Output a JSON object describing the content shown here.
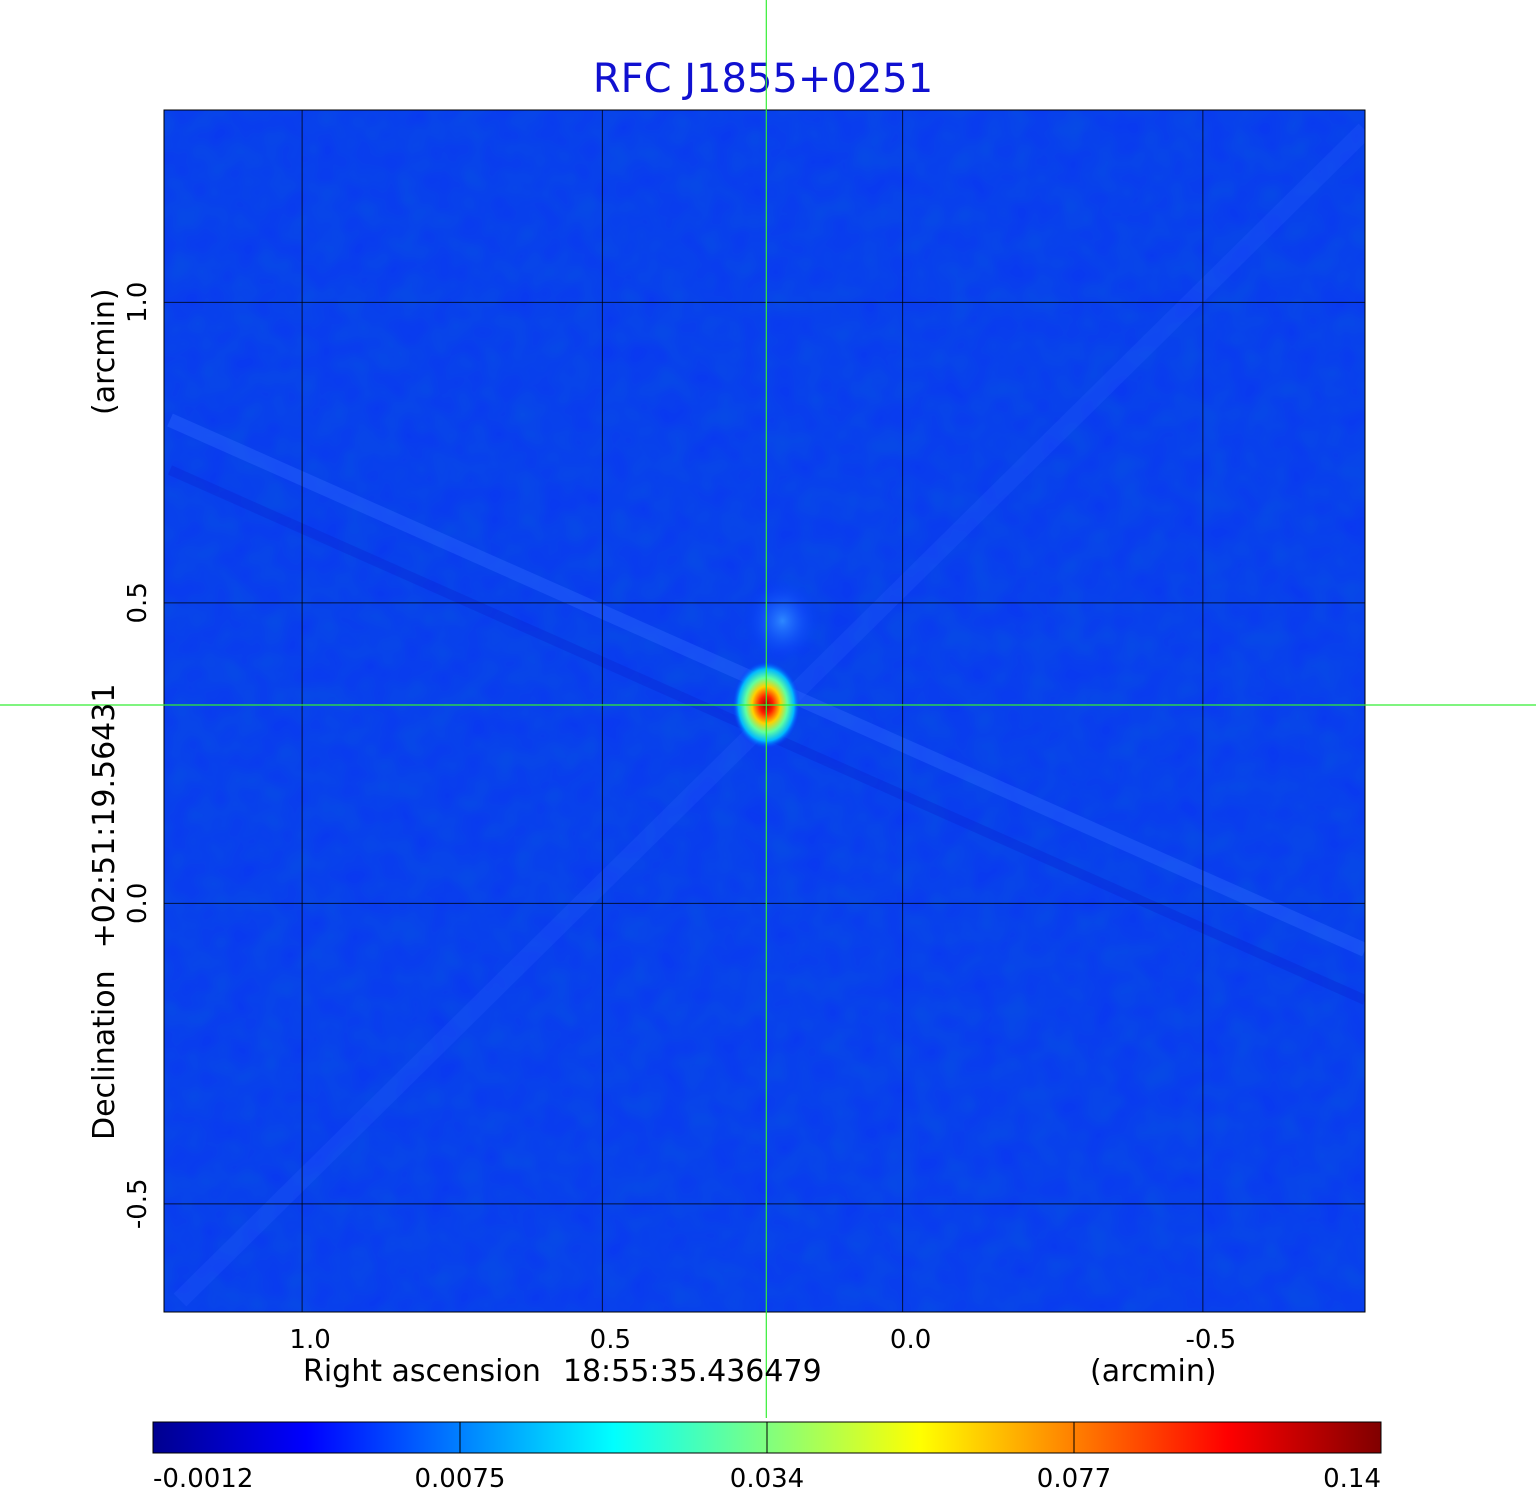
{
  "chart_data": {
    "type": "heatmap",
    "title": "RFC J1855+0251",
    "xlabel": {
      "name": "Right ascension",
      "center": "18:55:35.436479",
      "unit": "(arcmin)"
    },
    "ylabel": {
      "name": "Declination",
      "center": "+02:51:19.56431",
      "unit": "(arcmin)"
    },
    "x_axis": {
      "range": [
        1.23,
        -0.77
      ],
      "direction": "decreasing-rightward",
      "ticks": [
        1.0,
        0.5,
        0.0,
        -0.5
      ],
      "tick_labels": [
        "1.0",
        "0.5",
        "0.0",
        "-0.5"
      ]
    },
    "y_axis": {
      "range": [
        -0.68,
        1.32
      ],
      "ticks": [
        -0.5,
        0.0,
        0.5,
        1.0
      ],
      "tick_labels": [
        "-0.5",
        "0.0",
        "0.5",
        "1.0"
      ]
    },
    "grid": true,
    "crosshair": {
      "x": 0.227,
      "y": 0.33,
      "color": "#33ee33"
    },
    "source_peak": {
      "x": 0.227,
      "y": 0.33,
      "value": 0.14,
      "sidelobe_x": 0.2,
      "sidelobe_y": 0.47
    },
    "colormap": "jet",
    "colorbar": {
      "orientation": "horizontal",
      "position": "bottom",
      "tick_labels": [
        "-0.0012",
        "0.0075",
        "0.034",
        "0.077",
        "0.14"
      ],
      "range": [
        -0.0012,
        0.14
      ]
    }
  }
}
